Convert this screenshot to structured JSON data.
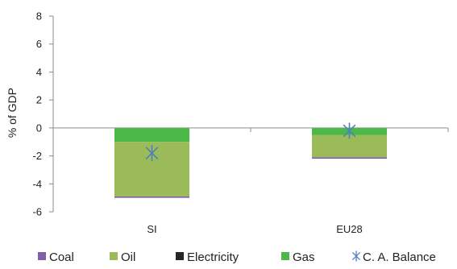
{
  "chart_data": {
    "type": "bar",
    "stacked": true,
    "categories": [
      "SI",
      "EU28"
    ],
    "ylabel": "% of GDP",
    "ylim": [
      -6,
      8
    ],
    "yticks": [
      -6,
      -4,
      -2,
      0,
      2,
      4,
      6,
      8
    ],
    "grid": false,
    "legend_position": "bottom",
    "series": [
      {
        "name": "Coal",
        "color": "#7f5fa8",
        "values": [
          -0.1,
          -0.1
        ]
      },
      {
        "name": "Oil",
        "color": "#9bbb59",
        "values": [
          -3.9,
          -1.6
        ]
      },
      {
        "name": "Electricity",
        "color": "#262626",
        "values": [
          0.0,
          0.0
        ]
      },
      {
        "name": "Gas",
        "color": "#4cb848",
        "values": [
          -1.0,
          -0.5
        ]
      }
    ],
    "markers": {
      "name": "C. A. Balance",
      "color": "#4f81bd",
      "values": [
        -1.8,
        -0.2
      ]
    }
  }
}
